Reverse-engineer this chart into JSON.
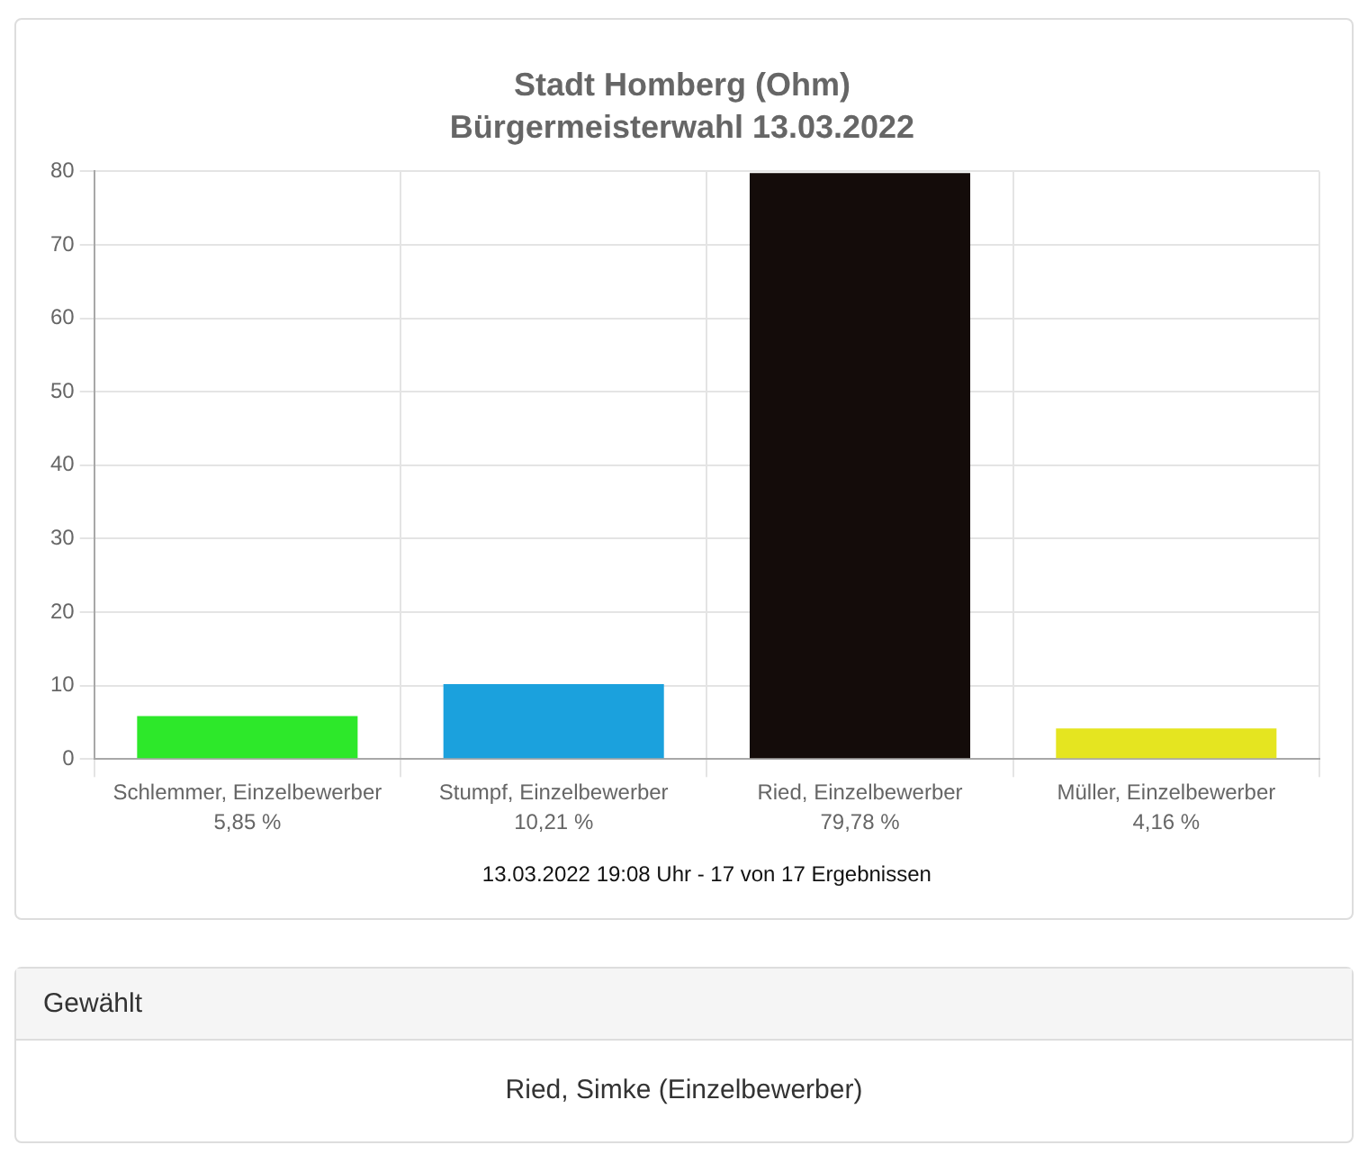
{
  "chart_data": [
    {
      "type": "bar",
      "title": "Stadt Homberg (Ohm)",
      "subtitle": "Bürgermeisterwahl 13.03.2022",
      "categories": [
        "Schlemmer, Einzelbewerber",
        "Stumpf, Einzelbewerber",
        "Ried, Einzelbewerber",
        "Müller, Einzelbewerber"
      ],
      "values": [
        5.85,
        10.21,
        79.78,
        4.16
      ],
      "colors": [
        "#2de82a",
        "#1ba1dd",
        "#140c0a",
        "#e5e520"
      ],
      "value_labels": [
        "5,85 %",
        "10,21 %",
        "79,78 %",
        "4,16 %"
      ],
      "ylim": [
        0,
        80
      ],
      "yticks": [
        0,
        10,
        20,
        30,
        40,
        50,
        60,
        70,
        80
      ],
      "grid": true,
      "annotations": [
        "13.03.2022 19:08 Uhr - 17 von 17 Ergebnissen"
      ]
    },
    {
      "type": "other",
      "title": "Gewählt",
      "annotations": [
        "Ried, Simke (Einzelbewerber)"
      ]
    }
  ]
}
